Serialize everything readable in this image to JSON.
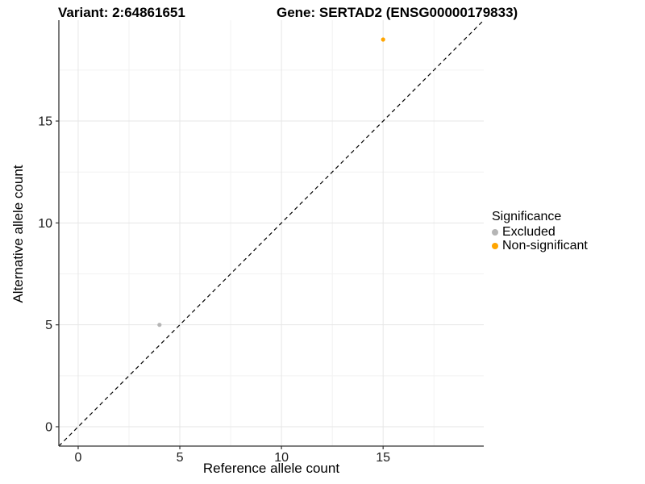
{
  "titles": {
    "variant": "Variant: 2:64861651",
    "gene": "Gene: SERTAD2 (ENSG00000179833)"
  },
  "axes": {
    "x_label": "Reference allele count",
    "y_label": "Alternative allele count"
  },
  "legend": {
    "title": "Significance",
    "items": [
      {
        "label": "Excluded",
        "color": "#b5b5b5"
      },
      {
        "label": "Non-significant",
        "color": "#FFA500"
      }
    ]
  },
  "colors": {
    "axis_line": "#333333",
    "tick_text": "#1a1a1a",
    "grid_major": "#e6e6e6",
    "grid_minor": "#f2f2f2",
    "reference_line": "#000000"
  },
  "chart_data": {
    "type": "scatter",
    "title": "Variant: 2:64861651 — Gene: SERTAD2 (ENSG00000179833)",
    "xlabel": "Reference allele count",
    "ylabel": "Alternative allele count",
    "xlim": [
      -0.95,
      19.95
    ],
    "ylim": [
      -0.95,
      19.95
    ],
    "x_ticks": [
      0,
      5,
      10,
      15
    ],
    "y_ticks": [
      0,
      5,
      10,
      15
    ],
    "x_minor_ticks": [
      2.5,
      7.5,
      12.5,
      17.5
    ],
    "y_minor_ticks": [
      2.5,
      7.5,
      12.5,
      17.5
    ],
    "grid": true,
    "legend_position": "right",
    "legend_title": "Significance",
    "series": [
      {
        "name": "Excluded",
        "color": "#b5b5b5",
        "points": [
          {
            "x": 4,
            "y": 5
          }
        ]
      },
      {
        "name": "Non-significant",
        "color": "#FFA500",
        "points": [
          {
            "x": 15,
            "y": 19
          }
        ]
      }
    ],
    "reference_line": {
      "type": "abline",
      "slope": 1,
      "intercept": 0,
      "style": "dashed"
    }
  }
}
